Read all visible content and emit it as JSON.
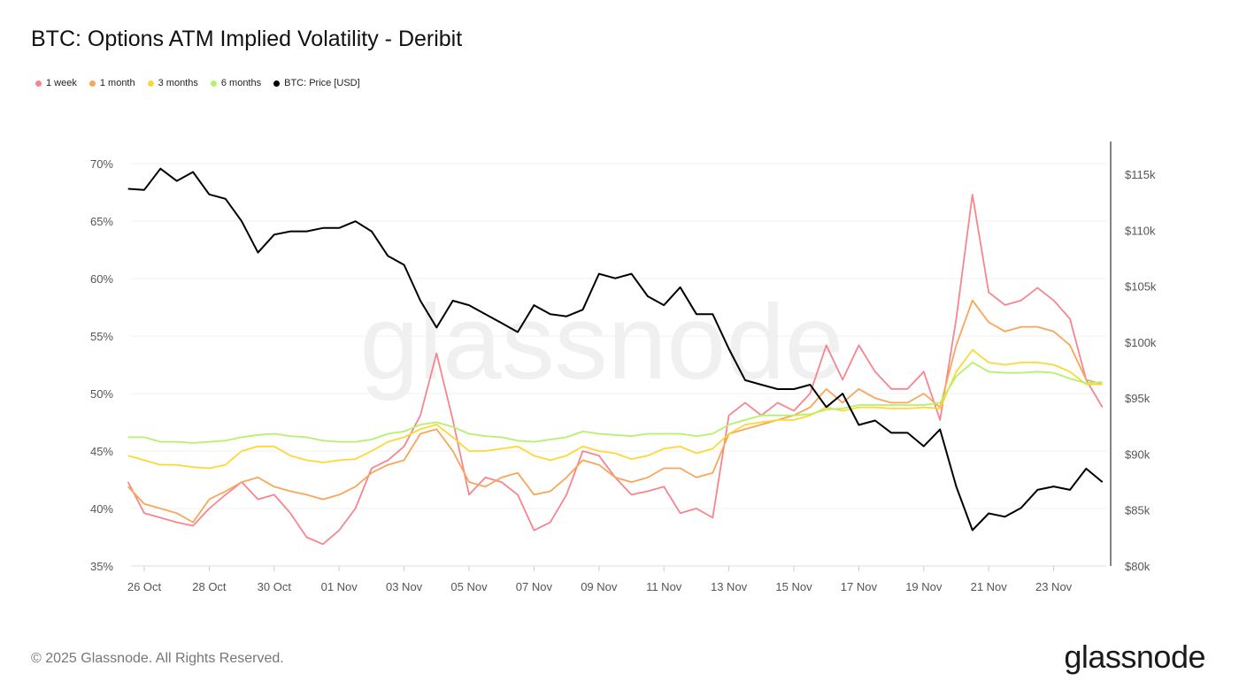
{
  "title": "BTC: Options ATM Implied Volatility - Deribit",
  "footer": "© 2025 Glassnode. All Rights Reserved.",
  "logo": "glassnode",
  "watermark": "glassnode",
  "chart_data": {
    "type": "line",
    "title": "BTC: Options ATM Implied Volatility - Deribit",
    "legend_placement": "top-left",
    "grid": true,
    "x_tick_labels": [
      "26 Oct",
      "28 Oct",
      "30 Oct",
      "01 Nov",
      "03 Nov",
      "05 Nov",
      "07 Nov",
      "09 Nov",
      "11 Nov",
      "13 Nov",
      "15 Nov",
      "17 Nov",
      "19 Nov",
      "21 Nov",
      "23 Nov"
    ],
    "y_left": {
      "ticks": [
        "35%",
        "40%",
        "45%",
        "50%",
        "55%",
        "60%",
        "65%",
        "70%"
      ],
      "range": [
        35,
        70
      ],
      "unit": "%"
    },
    "y_right": {
      "ticks": [
        "$80k",
        "$85k",
        "$90k",
        "$95k",
        "$100k",
        "$105k",
        "$110k",
        "$115k"
      ],
      "range": [
        80,
        115
      ],
      "unit": "k USD"
    },
    "x": [
      "2025-10-25T12:00",
      "2025-10-26T00:00",
      "2025-10-26T12:00",
      "2025-10-27T00:00",
      "2025-10-27T12:00",
      "2025-10-28T00:00",
      "2025-10-28T12:00",
      "2025-10-29T00:00",
      "2025-10-29T12:00",
      "2025-10-30T00:00",
      "2025-10-30T12:00",
      "2025-10-31T00:00",
      "2025-10-31T12:00",
      "2025-11-01T00:00",
      "2025-11-01T12:00",
      "2025-11-02T00:00",
      "2025-11-02T12:00",
      "2025-11-03T00:00",
      "2025-11-03T12:00",
      "2025-11-04T00:00",
      "2025-11-04T12:00",
      "2025-11-05T00:00",
      "2025-11-05T12:00",
      "2025-11-06T00:00",
      "2025-11-06T12:00",
      "2025-11-07T00:00",
      "2025-11-07T12:00",
      "2025-11-08T00:00",
      "2025-11-08T12:00",
      "2025-11-09T00:00",
      "2025-11-09T12:00",
      "2025-11-10T00:00",
      "2025-11-10T12:00",
      "2025-11-11T00:00",
      "2025-11-11T12:00",
      "2025-11-12T00:00",
      "2025-11-12T12:00",
      "2025-11-13T00:00",
      "2025-11-13T12:00",
      "2025-11-14T00:00",
      "2025-11-14T12:00",
      "2025-11-15T00:00",
      "2025-11-15T12:00",
      "2025-11-16T00:00",
      "2025-11-16T12:00",
      "2025-11-17T00:00",
      "2025-11-17T12:00",
      "2025-11-18T00:00",
      "2025-11-18T12:00",
      "2025-11-19T00:00",
      "2025-11-19T12:00",
      "2025-11-20T00:00",
      "2025-11-20T12:00",
      "2025-11-21T00:00",
      "2025-11-21T12:00",
      "2025-11-22T00:00",
      "2025-11-22T12:00",
      "2025-11-23T00:00",
      "2025-11-23T12:00",
      "2025-11-24T00:00",
      "2025-11-24T12:00"
    ],
    "series": [
      {
        "name": "1 week",
        "color": "#f7858f",
        "axis": "left",
        "values": [
          42.3,
          39.6,
          39.2,
          38.8,
          38.5,
          40,
          41.2,
          42.3,
          40.8,
          41.2,
          39.6,
          37.5,
          36.9,
          38.1,
          40,
          43.5,
          44.2,
          45.4,
          48.1,
          53.5,
          47.7,
          41.2,
          42.7,
          42.3,
          41.2,
          38.1,
          38.8,
          41.2,
          45,
          44.6,
          42.7,
          41.2,
          41.5,
          41.9,
          39.6,
          40,
          39.2,
          48.1,
          49.2,
          48.1,
          49.2,
          48.5,
          50,
          54.2,
          51.2,
          54.2,
          51.9,
          50.4,
          50.4,
          51.9,
          47.7,
          56.5,
          67.3,
          58.8,
          57.7,
          58.1,
          59.2,
          58.1,
          56.5,
          51.2,
          48.8
        ]
      },
      {
        "name": "1 month",
        "color": "#f8a65a",
        "axis": "left",
        "values": [
          41.9,
          40.4,
          40,
          39.6,
          38.8,
          40.8,
          41.5,
          42.3,
          42.7,
          41.9,
          41.5,
          41.2,
          40.8,
          41.2,
          41.9,
          43.1,
          43.8,
          44.2,
          46.5,
          46.9,
          45,
          42.3,
          41.9,
          42.7,
          43.1,
          41.2,
          41.5,
          42.7,
          44.2,
          43.8,
          42.7,
          42.3,
          42.7,
          43.5,
          43.5,
          42.7,
          43.1,
          46.5,
          46.9,
          47.3,
          47.7,
          48.1,
          48.8,
          50.4,
          49.2,
          50.4,
          49.6,
          49.2,
          49.2,
          50,
          48.8,
          54.2,
          58.1,
          56.2,
          55.4,
          55.8,
          55.8,
          55.4,
          54.2,
          51.2,
          50.8
        ]
      },
      {
        "name": "3 months",
        "color": "#fdd835",
        "axis": "left",
        "values": [
          44.6,
          44.2,
          43.8,
          43.8,
          43.6,
          43.5,
          43.8,
          45,
          45.4,
          45.4,
          44.6,
          44.2,
          44,
          44.2,
          44.3,
          45,
          45.8,
          46.2,
          46.9,
          47.3,
          46.2,
          45,
          45,
          45.2,
          45.4,
          44.6,
          44.2,
          44.6,
          45.4,
          45,
          44.8,
          44.3,
          44.6,
          45.2,
          45.4,
          44.8,
          45.2,
          46.5,
          47.3,
          47.5,
          47.7,
          47.7,
          48.1,
          48.8,
          48.5,
          48.8,
          48.8,
          48.7,
          48.7,
          48.8,
          48.7,
          51.9,
          53.8,
          52.7,
          52.5,
          52.7,
          52.7,
          52.5,
          51.9,
          50.8,
          50.8
        ]
      },
      {
        "name": "6 months",
        "color": "#b5f16a",
        "axis": "left",
        "values": [
          46.2,
          46.2,
          45.8,
          45.8,
          45.7,
          45.8,
          45.9,
          46.2,
          46.4,
          46.5,
          46.3,
          46.2,
          45.9,
          45.8,
          45.8,
          46,
          46.5,
          46.7,
          47.3,
          47.5,
          47.1,
          46.5,
          46.3,
          46.2,
          45.9,
          45.8,
          46,
          46.2,
          46.7,
          46.5,
          46.4,
          46.3,
          46.5,
          46.5,
          46.5,
          46.3,
          46.5,
          47.3,
          47.7,
          48.1,
          48.1,
          48.1,
          48.2,
          48.6,
          48.7,
          49,
          49,
          49,
          49,
          49,
          49.2,
          51.5,
          52.7,
          51.9,
          51.8,
          51.8,
          51.9,
          51.8,
          51.3,
          50.9,
          51
        ]
      },
      {
        "name": "BTC: Price [USD]",
        "color": "#000000",
        "axis": "right",
        "values": [
          113.7,
          113.6,
          115.5,
          114.4,
          115.2,
          113.2,
          112.8,
          110.8,
          108,
          109.6,
          109.9,
          109.9,
          110.2,
          110.2,
          110.8,
          109.9,
          107.7,
          106.9,
          103.7,
          101.3,
          103.7,
          103.3,
          102.5,
          101.7,
          100.9,
          103.3,
          102.5,
          102.3,
          102.9,
          106.1,
          105.7,
          106.1,
          104.1,
          103.3,
          104.9,
          102.5,
          102.5,
          99.4,
          96.6,
          96.2,
          95.8,
          95.8,
          96.2,
          94.2,
          95.4,
          92.6,
          93,
          91.9,
          91.9,
          90.7,
          92.2,
          87.1,
          83.2,
          84.7,
          84.4,
          85.2,
          86.8,
          87.1,
          86.8,
          88.7,
          87.5
        ]
      }
    ]
  }
}
